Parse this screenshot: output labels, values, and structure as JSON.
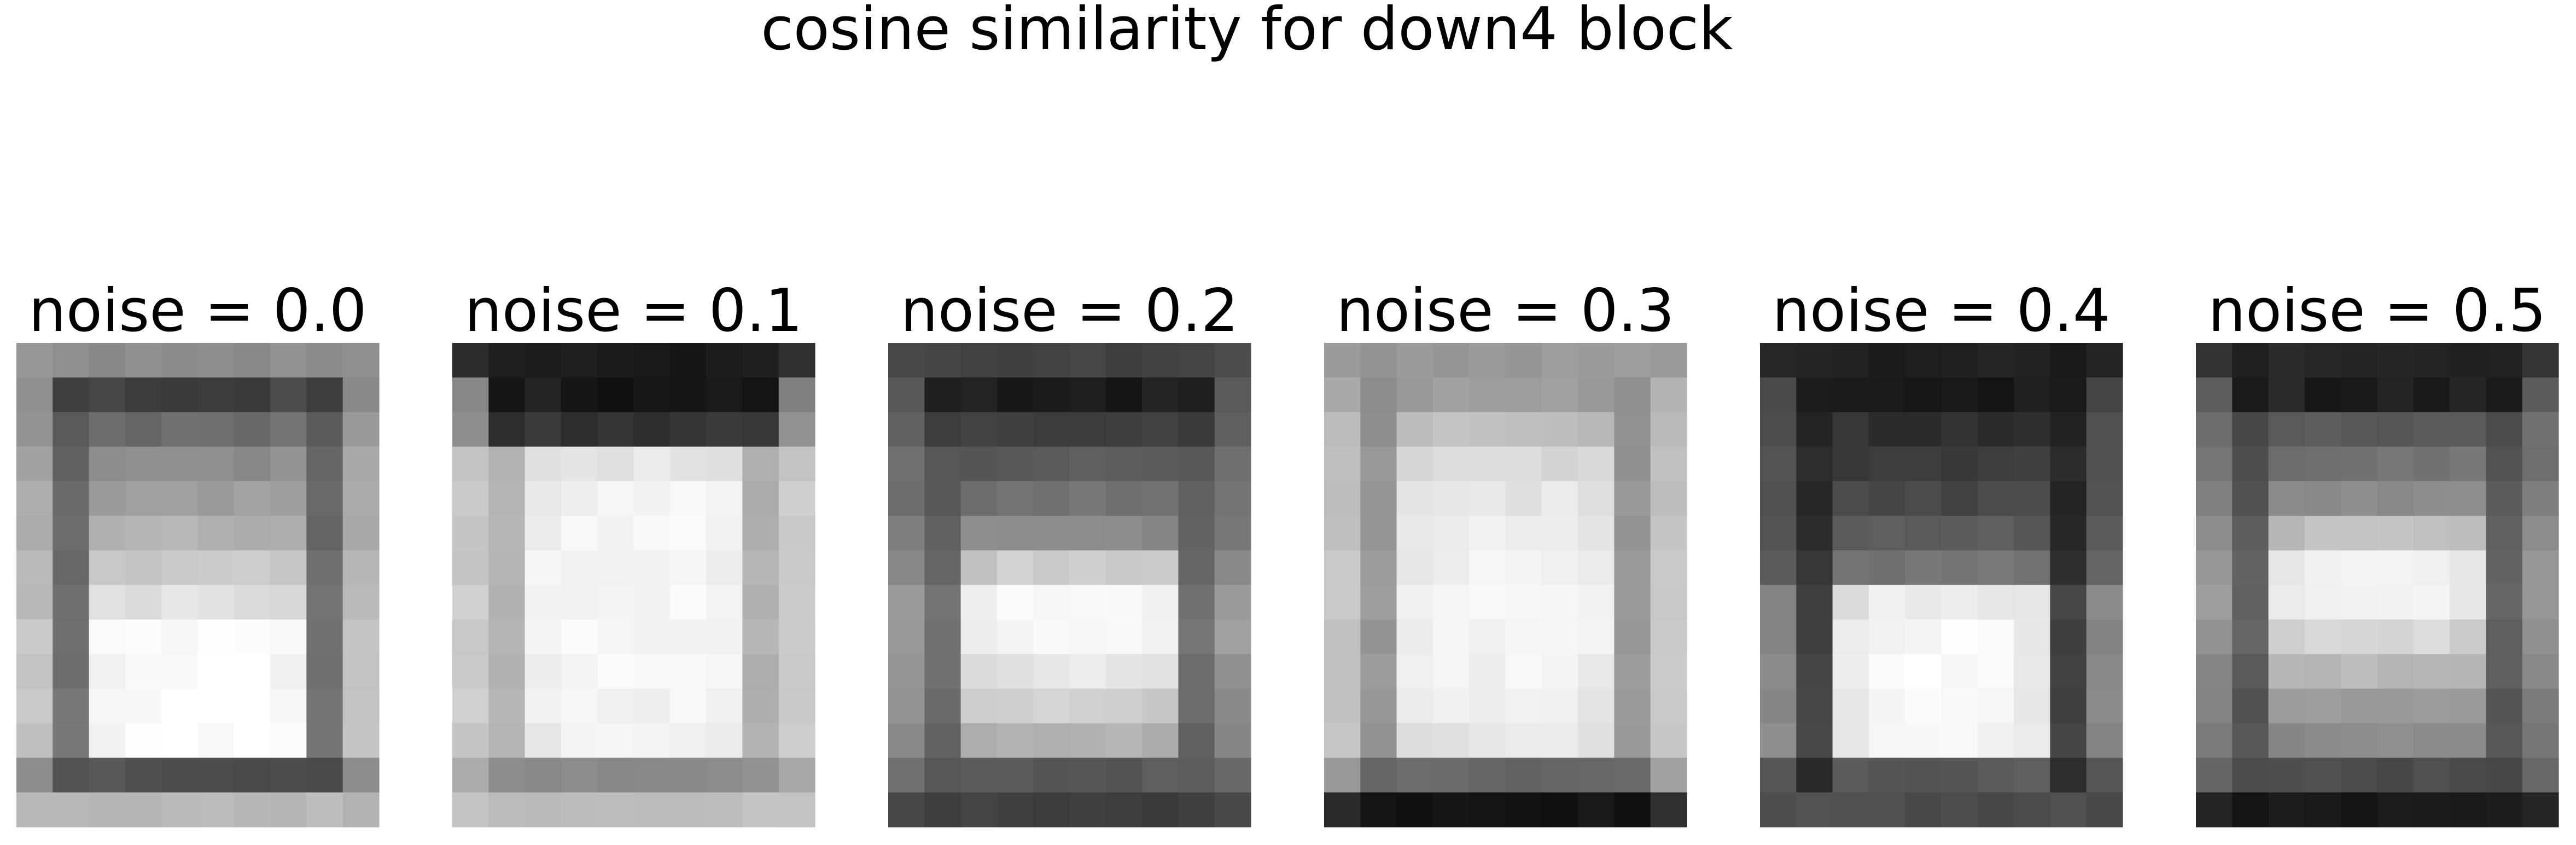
{
  "figure": {
    "title": "cosine similarity for down4 block"
  },
  "chart_data": {
    "type": "heatmap",
    "title": "cosine similarity for down4 block",
    "colormap": "gray",
    "axes_visible": false,
    "grid": false,
    "legend": "none",
    "grid_shape": [
      14,
      10
    ],
    "panels": [
      {
        "title": "noise = 0.0",
        "profile": {
          "outer_top": 0.55,
          "top_band": 0.25,
          "rows": [
            0.42,
            0.55,
            0.62,
            0.7,
            0.78,
            0.88,
            0.98,
            0.99,
            0.99,
            0.99,
            0.98
          ],
          "border_bottom": 0.3,
          "outer_bottom": 0.72,
          "edge": 0.3,
          "side": 0.68,
          "rim": 0.62
        }
      },
      {
        "title": "noise = 0.1",
        "profile": {
          "outer_top": 0.1,
          "top_band": 0.08,
          "rows": [
            0.2,
            0.9,
            0.95,
            0.96,
            0.96,
            0.97,
            0.97,
            0.96,
            0.95,
            0.94,
            0.93
          ],
          "border_bottom": 0.55,
          "outer_bottom": 0.75,
          "edge": 0.55,
          "side": 0.72,
          "rim": 0.68
        }
      },
      {
        "title": "noise = 0.2",
        "profile": {
          "outer_top": 0.25,
          "top_band": 0.1,
          "rows": [
            0.25,
            0.35,
            0.45,
            0.55,
            0.8,
            0.96,
            0.98,
            0.9,
            0.82,
            0.7,
            0.6
          ],
          "border_bottom": 0.35,
          "outer_bottom": 0.25,
          "edge": 0.3,
          "side": 0.45,
          "rim": 0.4
        }
      },
      {
        "title": "noise = 0.3",
        "profile": {
          "outer_top": 0.6,
          "top_band": 0.62,
          "rows": [
            0.75,
            0.85,
            0.9,
            0.92,
            0.94,
            0.95,
            0.96,
            0.95,
            0.93,
            0.9,
            0.85
          ],
          "border_bottom": 0.4,
          "outer_bottom": 0.08,
          "edge": 0.45,
          "side": 0.7,
          "rim": 0.62
        }
      },
      {
        "title": "noise = 0.4",
        "profile": {
          "outer_top": 0.12,
          "top_band": 0.1,
          "rows": [
            0.18,
            0.22,
            0.28,
            0.35,
            0.45,
            0.92,
            0.97,
            0.98,
            0.97,
            0.96,
            0.95
          ],
          "border_bottom": 0.35,
          "outer_bottom": 0.3,
          "edge": 0.12,
          "side": 0.35,
          "rim": 0.3
        }
      },
      {
        "title": "noise = 0.5",
        "profile": {
          "outer_top": 0.15,
          "top_band": 0.12,
          "rows": [
            0.35,
            0.45,
            0.55,
            0.75,
            0.95,
            0.96,
            0.85,
            0.72,
            0.62,
            0.55,
            0.5
          ],
          "border_bottom": 0.3,
          "outer_bottom": 0.1,
          "edge": 0.25,
          "side": 0.45,
          "rim": 0.4
        }
      }
    ]
  }
}
